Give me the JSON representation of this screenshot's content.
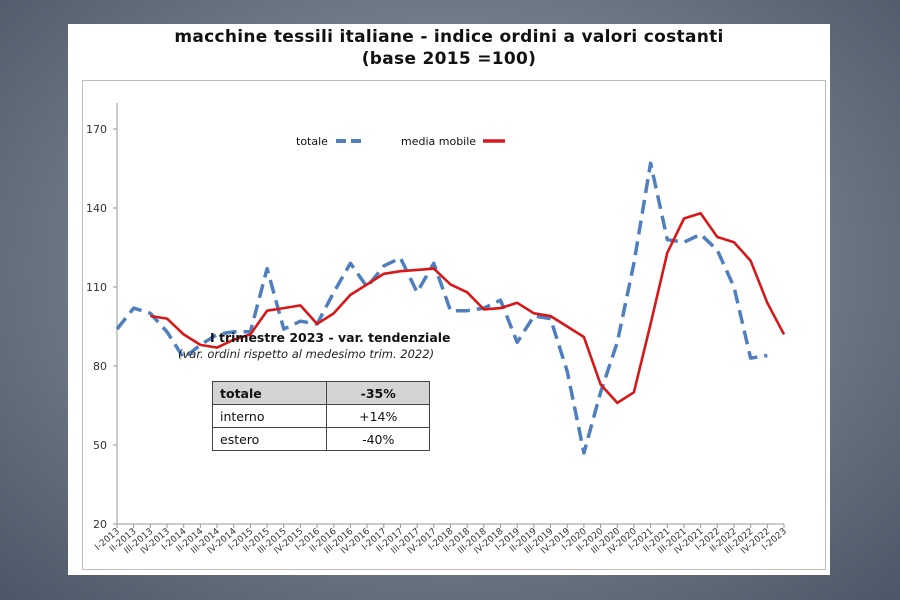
{
  "title": {
    "line1": "macchine tessili italiane - indice ordini a valori costanti",
    "line2": "(base 2015 =100)"
  },
  "colors": {
    "totale": "#4f7fbf",
    "media_mobile": "#d81818",
    "axis": "#999999"
  },
  "chart_data": {
    "type": "line",
    "title": "macchine tessili italiane - indice ordini a valori costanti (base 2015 =100)",
    "ylim": [
      20,
      170
    ],
    "yticks": [
      20,
      50,
      80,
      110,
      140,
      170
    ],
    "legend": {
      "placement": "top-center",
      "entries": [
        "totale",
        "media mobile"
      ]
    },
    "categories": [
      "I-2013",
      "II-2013",
      "III-2013",
      "IV-2013",
      "I-2014",
      "II-2014",
      "III-2014",
      "IV-2014",
      "I-2015",
      "II-2015",
      "III-2015",
      "IV-2015",
      "I-2016",
      "II-2016",
      "III-2016",
      "IV-2016",
      "I-2017",
      "II-2017",
      "III-2017",
      "IV-2017",
      "I-2018",
      "II-2018",
      "III-2018",
      "IV-2018",
      "I-2019",
      "II-2019",
      "III-2019",
      "IV-2019",
      "I-2020",
      "II-2020",
      "III-2020",
      "IV-2020",
      "I-2021",
      "II-2021",
      "III-2021",
      "IV-2021",
      "I-2022",
      "II-2022",
      "III-2022",
      "IV-2022",
      "I-2023"
    ],
    "series": [
      {
        "name": "totale",
        "style": "dashed",
        "values": [
          94,
          102,
          100,
          93,
          83,
          88,
          92,
          93,
          93,
          117,
          94,
          97,
          96,
          108,
          119,
          110,
          118,
          121,
          108,
          119,
          101,
          101,
          102,
          105,
          89,
          99,
          98,
          78,
          47,
          70,
          89,
          119,
          157,
          128,
          127,
          130,
          124,
          110,
          83,
          84,
          null
        ]
      },
      {
        "name": "media mobile",
        "style": "solid",
        "values": [
          null,
          null,
          99,
          98,
          92,
          88,
          87,
          90,
          92,
          101,
          102,
          103,
          96,
          100,
          107,
          111,
          115,
          116,
          116.5,
          117,
          111,
          108,
          101.5,
          102,
          104,
          100,
          99,
          95,
          91,
          73,
          66,
          70,
          96,
          123,
          136,
          138,
          129,
          127,
          120,
          104,
          92
        ]
      }
    ]
  },
  "legend": {
    "totale_label": "totale",
    "media_label": "media mobile"
  },
  "annotation": {
    "title": "I trimestre 2023 - var. tendenziale",
    "subtitle": "(var. ordini rispetto al medesimo trim. 2022)",
    "table": [
      {
        "label": "totale",
        "value": "-35%"
      },
      {
        "label": "interno",
        "value": "+14%"
      },
      {
        "label": "estero",
        "value": "-40%"
      }
    ]
  }
}
